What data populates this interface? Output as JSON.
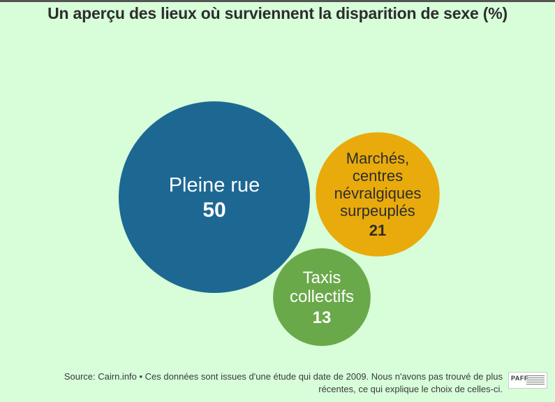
{
  "title": "Un aperçu des lieux où surviennent la disparition de sexe (%)",
  "source_line1": "Source: Cairn.info • Ces données sont issues d'une étude qui date de 2009. Nous n'avons pas trouvé de plus",
  "source_line2": "récentes, ce qui explique le choix de celles-ci.",
  "logo_text": "PAFF",
  "chart_data": {
    "type": "bubble",
    "title": "Un aperçu des lieux où surviennent la disparition de sexe (%)",
    "unit": "%",
    "values": [
      {
        "label": [
          "Pleine rue"
        ],
        "value": 50,
        "color": "#1d6893",
        "text_color": "#ffffff"
      },
      {
        "label": [
          "Marchés,",
          "centres",
          "névralgiques",
          "surpeuplés"
        ],
        "value": 21,
        "color": "#e9ab0b",
        "text_color": "#2d2d2d"
      },
      {
        "label": [
          "Taxis",
          "collectifs"
        ],
        "value": 13,
        "color": "#6aa94a",
        "text_color": "#ffffff"
      }
    ]
  }
}
